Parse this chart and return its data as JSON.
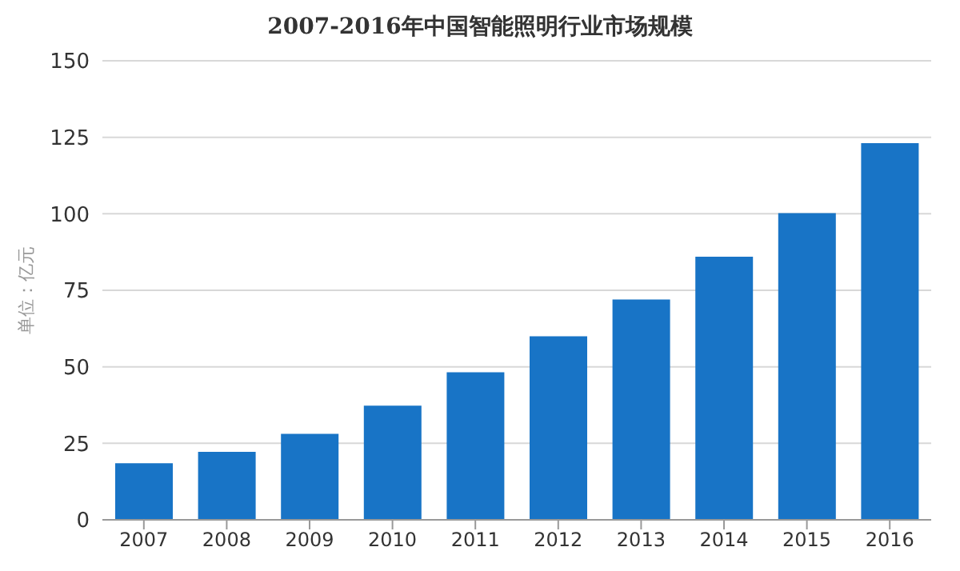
{
  "chart_data": {
    "type": "bar",
    "title": "2007-2016年中国智能照明行业市场规模",
    "ylabel": "单位：亿元",
    "categories": [
      "2007",
      "2008",
      "2009",
      "2010",
      "2011",
      "2012",
      "2013",
      "2014",
      "2015",
      "2016"
    ],
    "values": [
      18.5,
      22.2,
      28.1,
      37.3,
      48.2,
      60.0,
      72.0,
      86.0,
      100.2,
      123.1
    ],
    "color": "#1874c6",
    "ylim": [
      0,
      150
    ],
    "yticks": [
      0,
      25,
      50,
      75,
      100,
      125,
      150
    ],
    "grid": "y",
    "legend": false
  }
}
